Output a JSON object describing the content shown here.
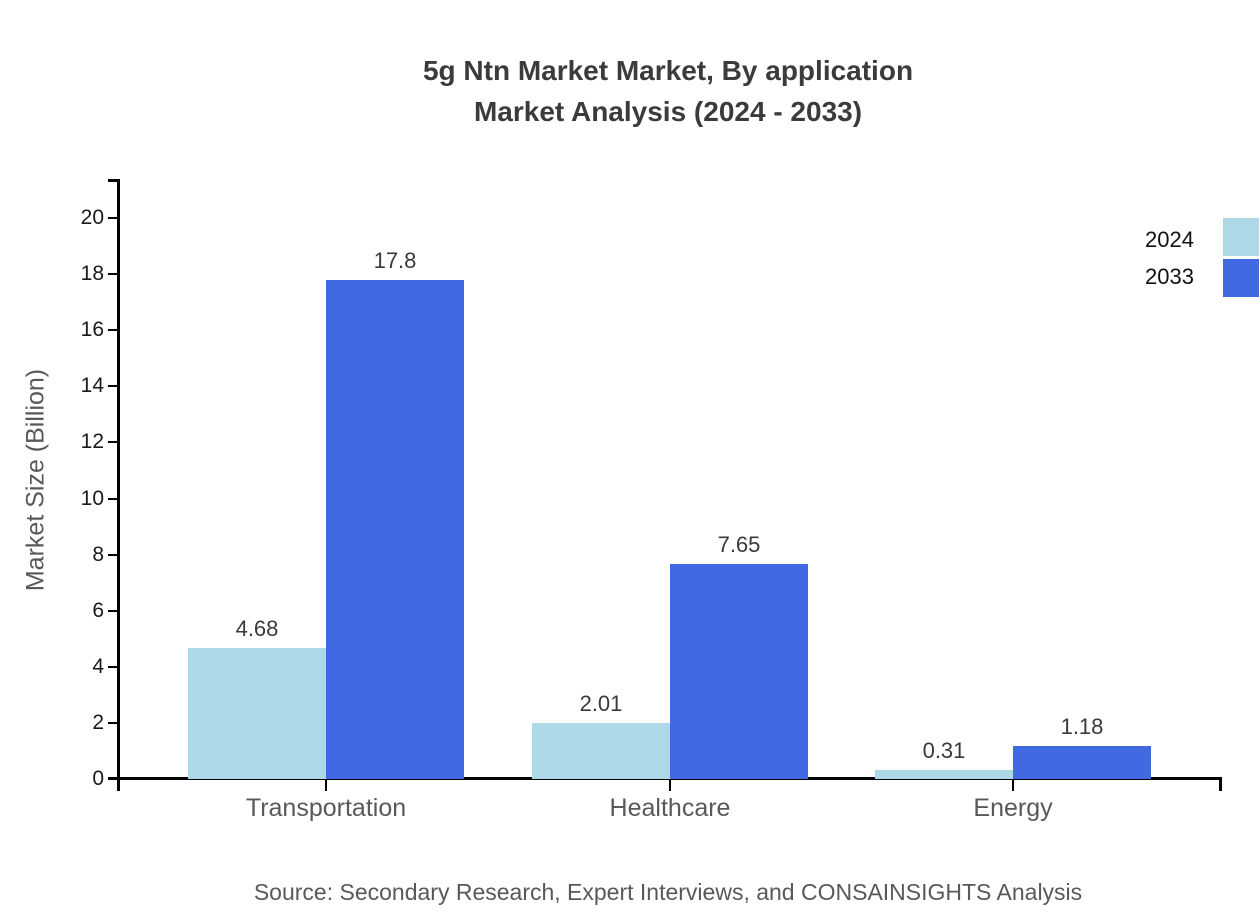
{
  "title": {
    "line1": "5g Ntn Market Market, By application",
    "line2": "Market Analysis (2024 - 2033)"
  },
  "source_text": "Source: Secondary Research, Expert Interviews, and CONSAINSIGHTS Analysis",
  "legend": {
    "items": [
      {
        "label": "2024",
        "color": "#ADD8E6"
      },
      {
        "label": "2033",
        "color": "#4169E1"
      }
    ]
  },
  "chart_data": {
    "type": "bar",
    "title": "5g Ntn Market Market, By application Market Analysis (2024 - 2033)",
    "categories": [
      "Transportation",
      "Healthcare",
      "Energy"
    ],
    "series": [
      {
        "name": "2024",
        "color": "#ADD8E6",
        "values": [
          4.68,
          2.01,
          0.31
        ]
      },
      {
        "name": "2033",
        "color": "#4169E1",
        "values": [
          17.8,
          7.65,
          1.18
        ]
      }
    ],
    "value_labels": [
      [
        "4.68",
        "17.8"
      ],
      [
        "2.01",
        "7.65"
      ],
      [
        "0.31",
        "1.18"
      ]
    ],
    "xlabel": "",
    "ylabel": "Market Size (Billion)",
    "ylim": [
      0,
      20
    ],
    "yticks": [
      0,
      2,
      4,
      6,
      8,
      10,
      12,
      14,
      16,
      18,
      20
    ],
    "grid": false,
    "legend_position": "top-right",
    "bar_value_labels": true
  }
}
